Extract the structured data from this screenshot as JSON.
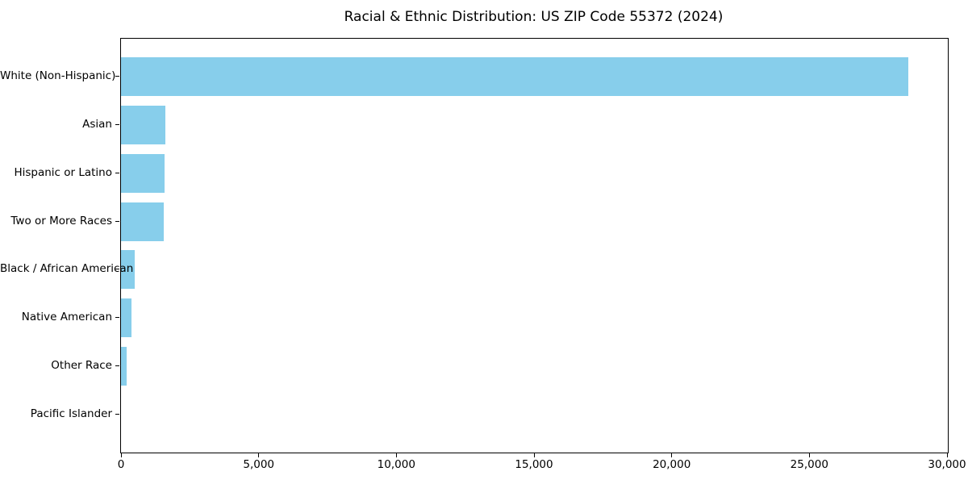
{
  "chart_data": {
    "type": "bar",
    "orientation": "horizontal",
    "title": "Racial & Ethnic Distribution: US ZIP Code 55372 (2024)",
    "categories": [
      "White (Non-Hispanic)",
      "Asian",
      "Hispanic or Latino",
      "Two or More Races",
      "Black / African American",
      "Native American",
      "Other Race",
      "Pacific Islander"
    ],
    "values": [
      28600,
      1610,
      1580,
      1550,
      500,
      380,
      210,
      0
    ],
    "x_ticks": [
      0,
      5000,
      10000,
      15000,
      20000,
      25000,
      30000
    ],
    "x_tick_labels": [
      "0",
      "5,000",
      "10,000",
      "15,000",
      "20,000",
      "25,000",
      "30,000"
    ],
    "xlim": [
      0,
      30030
    ],
    "xlabel": "",
    "ylabel": "",
    "grid": false,
    "legend": null,
    "bar_color": "#87CEEB",
    "axis_color": "#000000",
    "background_color": "#ffffff",
    "sorted": "descending"
  }
}
